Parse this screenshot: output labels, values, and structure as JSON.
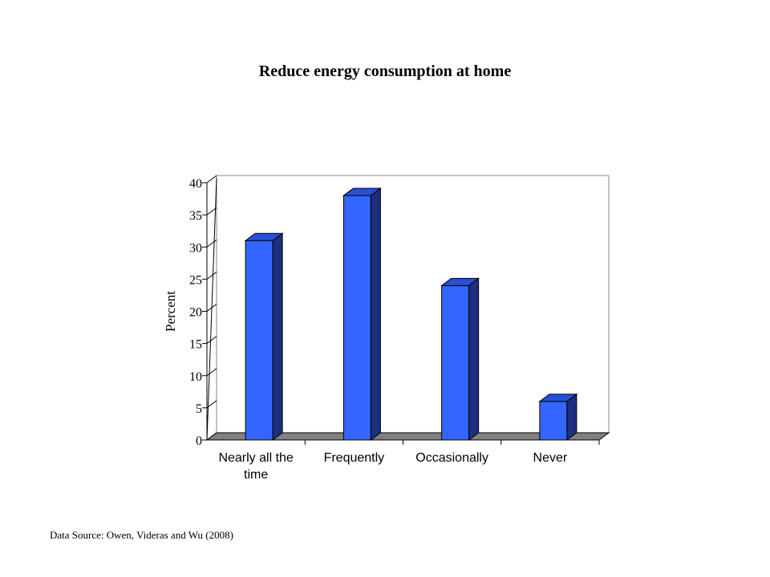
{
  "chart_data": {
    "type": "bar",
    "title": "Reduce energy consumption at home",
    "ylabel": "Percent",
    "xlabel": "",
    "categories": [
      [
        "Nearly all the",
        "time"
      ],
      [
        "Frequently"
      ],
      [
        "Occasionally"
      ],
      [
        "Never"
      ]
    ],
    "values": [
      31,
      38,
      24,
      6
    ],
    "ylim": [
      0,
      40
    ],
    "yticks": [
      0,
      5,
      10,
      15,
      20,
      25,
      30,
      35,
      40
    ],
    "grid": false,
    "three_d": true,
    "colors": {
      "bar_front": "#3366ff",
      "bar_top": "#2a4fd6",
      "bar_side": "#1e2f80",
      "floor": "#808080"
    }
  },
  "footer": {
    "source": "Data Source: Owen, Videras and Wu (2008)"
  }
}
